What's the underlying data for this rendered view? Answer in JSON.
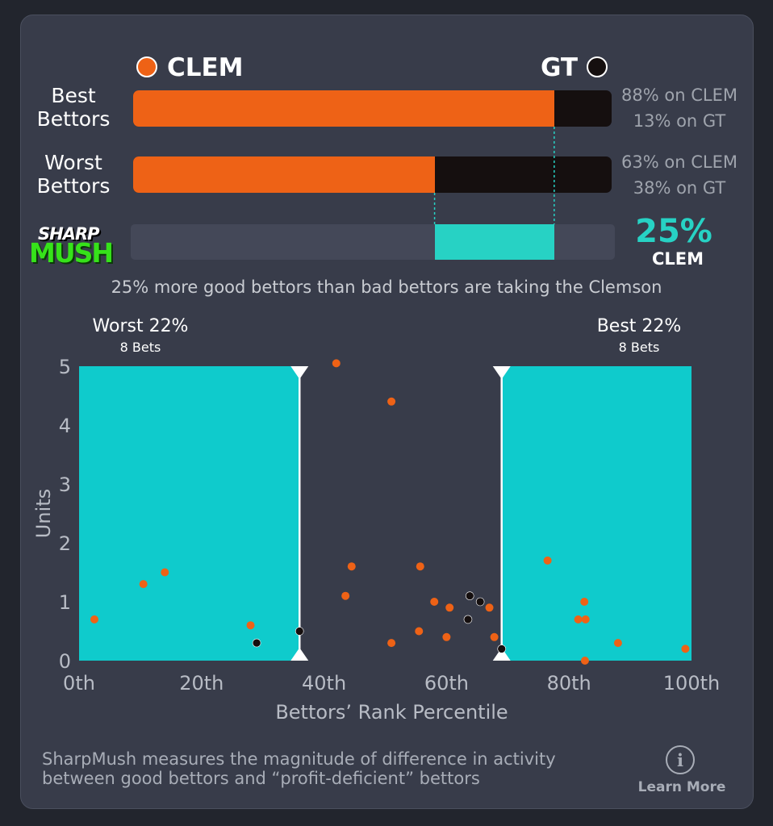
{
  "teams": {
    "left": {
      "name": "CLEM",
      "color": "#ee6216"
    },
    "right": {
      "name": "GT",
      "color": "#150f0f"
    }
  },
  "rows": [
    {
      "label_line1": "Best",
      "label_line2": "Bettors",
      "left_pct": 88,
      "pct_line1": "88% on CLEM",
      "pct_line2": "13% on GT"
    },
    {
      "label_line1": "Worst",
      "label_line2": "Bettors",
      "left_pct": 63,
      "pct_line1": "63% on CLEM",
      "pct_line2": "38% on GT"
    }
  ],
  "logo": {
    "line1": "SHARP",
    "line2": "MUSH"
  },
  "sharpmush": {
    "value_label": "25%",
    "team": "CLEM",
    "accent": "#27d2c4"
  },
  "summary": "25% more good bettors than bad bettors are taking the Clemson",
  "ranges": {
    "worst": {
      "title": "Worst 22%",
      "sub": "8 Bets"
    },
    "best": {
      "title": "Best 22%",
      "sub": "8 Bets"
    }
  },
  "chart_data": {
    "type": "scatter",
    "xlabel": "Bettors’ Rank Percentile",
    "ylabel": "Units",
    "xlim": [
      0,
      100
    ],
    "ylim": [
      0,
      5
    ],
    "x_ticks": [
      0,
      20,
      40,
      60,
      80,
      100
    ],
    "x_tick_labels": [
      "0th",
      "20th",
      "40th",
      "60th",
      "80th",
      "100th"
    ],
    "y_ticks": [
      0,
      1,
      2,
      3,
      4,
      5
    ],
    "y_tick_labels": [
      "0",
      "1",
      "2",
      "3",
      "4",
      "5"
    ],
    "highlight_ranges": [
      {
        "name": "worst",
        "from": 0,
        "to": 36
      },
      {
        "name": "best",
        "from": 69,
        "to": 100
      }
    ],
    "series": [
      {
        "name": "CLEM",
        "color": "#ee6216",
        "points": [
          [
            2.5,
            0.7
          ],
          [
            10.5,
            1.3
          ],
          [
            14,
            1.5
          ],
          [
            28,
            0.6
          ],
          [
            42,
            5.05
          ],
          [
            43.5,
            1.1
          ],
          [
            44.5,
            1.6
          ],
          [
            51,
            0.3
          ],
          [
            51,
            4.4
          ],
          [
            55.5,
            0.5
          ],
          [
            55.7,
            1.6
          ],
          [
            58,
            1.0
          ],
          [
            60,
            0.4
          ],
          [
            60.5,
            0.9
          ],
          [
            67,
            0.9
          ],
          [
            67.8,
            0.4
          ],
          [
            76.5,
            1.7
          ],
          [
            81.5,
            0.7
          ],
          [
            82.5,
            1.0
          ],
          [
            82.7,
            0.7
          ],
          [
            82.6,
            0.0
          ],
          [
            88,
            0.3
          ],
          [
            99,
            0.2
          ]
        ]
      },
      {
        "name": "GT",
        "color": "#150f0f",
        "points": [
          [
            29,
            0.3
          ],
          [
            36,
            0.5
          ],
          [
            63.5,
            0.7
          ],
          [
            63.8,
            1.1
          ],
          [
            65.5,
            1.0
          ],
          [
            69,
            0.2
          ]
        ]
      }
    ]
  },
  "footer": {
    "line1": "SharpMush measures the magnitude of difference in activity",
    "line2": "between good bettors and “profit-deficient” bettors",
    "info_glyph": "i",
    "learn_more": "Learn More"
  }
}
